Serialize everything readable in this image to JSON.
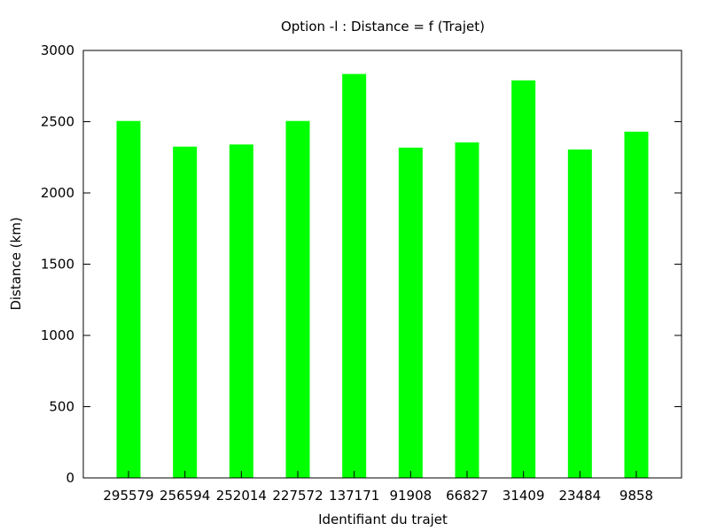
{
  "chart_data": {
    "type": "bar",
    "title": "Option -l : Distance = f (Trajet)",
    "xlabel": "Identifiant du trajet",
    "ylabel": "Distance (km)",
    "ylim": [
      0,
      3000
    ],
    "yticks": [
      0,
      500,
      1000,
      1500,
      2000,
      2500,
      3000
    ],
    "categories": [
      "295579",
      "256594",
      "252014",
      "227572",
      "137171",
      "91908",
      "66827",
      "31409",
      "23484",
      "9858"
    ],
    "values": [
      2505,
      2325,
      2340,
      2505,
      2835,
      2318,
      2355,
      2790,
      2305,
      2430
    ],
    "bar_color": "#00ff00",
    "grid": false,
    "legend": "none"
  }
}
